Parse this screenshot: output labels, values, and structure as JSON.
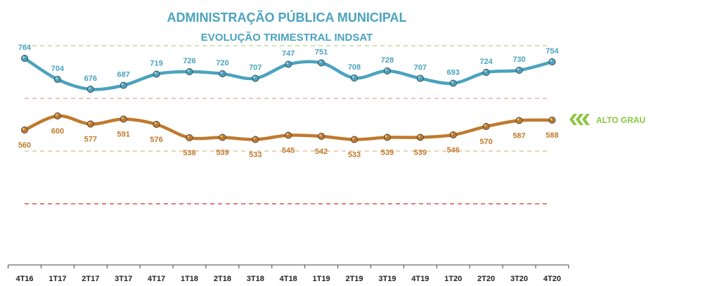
{
  "chart_data": {
    "type": "line",
    "title": "ADMINISTRAÇÃO PÚBLICA MUNICIPAL",
    "subtitle": "EVOLUÇÃO TRIMESTRAL INDSAT",
    "categories": [
      "4T16",
      "1T17",
      "2T17",
      "3T17",
      "4T17",
      "1T18",
      "2T18",
      "3T18",
      "4T18",
      "1T19",
      "2T19",
      "3T19",
      "4T19",
      "1T20",
      "2T20",
      "3T20",
      "4T20"
    ],
    "series": [
      {
        "values": [
          764,
          704,
          676,
          687,
          719,
          726,
          720,
          707,
          747,
          751,
          708,
          728,
          707,
          693,
          724,
          730,
          754
        ],
        "color": "#4aa3bf"
      },
      {
        "values": [
          560,
          600,
          577,
          591,
          576,
          538,
          539,
          533,
          545,
          542,
          533,
          539,
          539,
          546,
          570,
          587,
          588
        ],
        "color": "#c07a2c"
      }
    ],
    "ylim": [
      150,
      930
    ],
    "reference_lines": [
      {
        "value": 800,
        "color": "#c9d99a"
      },
      {
        "value": 650,
        "color": "#e8b0a6"
      },
      {
        "value": 500,
        "color": "#e8c39a"
      },
      {
        "value": 350,
        "color": "#d9534f"
      }
    ],
    "legend_label": "ALTO GRAU",
    "legend_color": "#8cc63f",
    "grid": false
  }
}
